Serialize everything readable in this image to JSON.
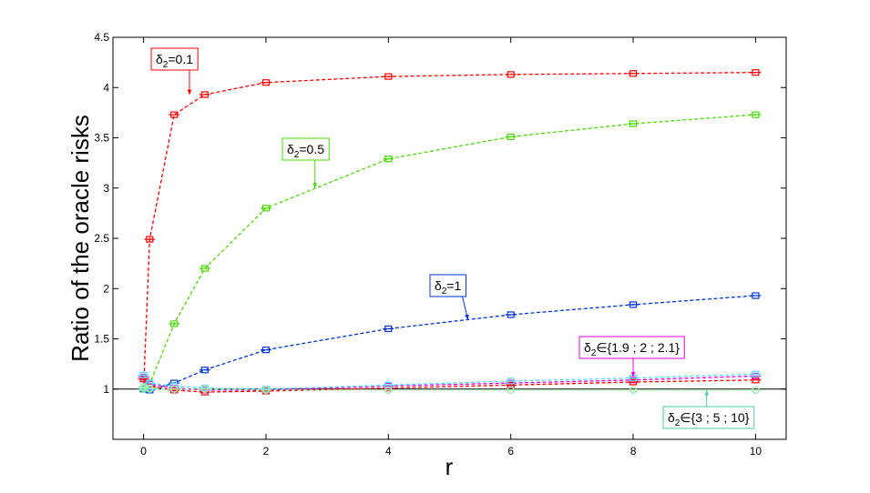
{
  "chart_data": {
    "type": "line",
    "title": "",
    "xlabel": "r",
    "ylabel": "Ratio of the oracle risks",
    "xlim": [
      -0.5,
      10.5
    ],
    "ylim": [
      0.5,
      4.5
    ],
    "xticks": [
      0,
      2,
      4,
      6,
      8,
      10
    ],
    "yticks": [
      1,
      1.5,
      2,
      2.5,
      3,
      3.5,
      4,
      4.5
    ],
    "reference_line": 1,
    "x": [
      0,
      0.1,
      0.5,
      1,
      2,
      4,
      6,
      8,
      10
    ],
    "series": [
      {
        "color": "#ff0000",
        "marker": "square",
        "values": [
          1.0,
          2.49,
          3.73,
          3.93,
          4.05,
          4.11,
          4.13,
          4.14,
          4.15
        ]
      },
      {
        "color": "#44dd00",
        "marker": "square",
        "values": [
          1.0,
          1.05,
          1.65,
          2.2,
          2.8,
          3.29,
          3.51,
          3.64,
          3.73
        ]
      },
      {
        "color": "#0033dd",
        "marker": "square",
        "values": [
          1.0,
          0.99,
          1.06,
          1.19,
          1.39,
          1.6,
          1.74,
          1.84,
          1.93
        ]
      },
      {
        "color": "#ee00ee",
        "marker": "square",
        "values": [
          1.12,
          1.05,
          1.01,
          0.99,
          0.99,
          1.03,
          1.06,
          1.09,
          1.13
        ]
      },
      {
        "color": "#ff0000",
        "marker": "square",
        "values": [
          1.1,
          1.03,
          0.99,
          0.97,
          0.98,
          1.01,
          1.04,
          1.07,
          1.09
        ]
      },
      {
        "color": "#55ddff",
        "marker": "square",
        "values": [
          1.14,
          1.06,
          1.03,
          1.01,
          1.0,
          1.04,
          1.08,
          1.11,
          1.15
        ]
      },
      {
        "color": "#44ccaa",
        "marker": "circle",
        "values": [
          1.0,
          1.0,
          1.0,
          1.0,
          0.99,
          0.99,
          0.99,
          0.99,
          0.99
        ]
      },
      {
        "color": "#88eecc",
        "marker": "circle",
        "values": [
          1.01,
          1.0,
          1.0,
          1.0,
          0.99,
          0.99,
          0.99,
          0.99,
          0.99
        ]
      },
      {
        "color": "#aaeeaa",
        "marker": "circle",
        "values": [
          1.02,
          1.01,
          1.0,
          1.0,
          0.99,
          0.99,
          0.99,
          0.99,
          0.99
        ]
      }
    ],
    "annotations": [
      {
        "sym": "δ",
        "sub": "2",
        "rest": "=0.1",
        "color": "#ff0000",
        "arrow_to": [
          0.75,
          3.93
        ]
      },
      {
        "sym": "δ",
        "sub": "2",
        "rest": "=0.5",
        "color": "#44dd00",
        "arrow_to": [
          2.8,
          3.0
        ]
      },
      {
        "sym": "δ",
        "sub": "2",
        "rest": "=1",
        "color": "#0033dd",
        "arrow_to": [
          5.3,
          1.69
        ]
      },
      {
        "sym": "δ",
        "sub": "2",
        "rest": "∈{1.9 ; 2 ; 2.1}",
        "color": "#ee00ee",
        "arrow_to": [
          8.0,
          1.12
        ]
      },
      {
        "sym": "δ",
        "sub": "2",
        "rest": "∈{3 ; 5 ; 10}",
        "color": "#44ccaa",
        "arrow_to": [
          9.2,
          0.99
        ]
      }
    ]
  }
}
